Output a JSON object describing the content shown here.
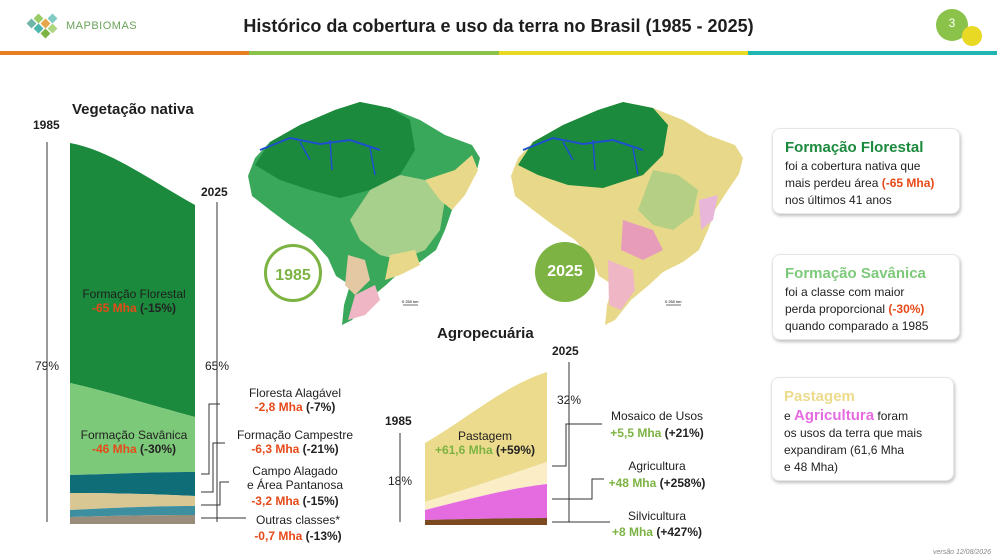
{
  "header": {
    "logo_text": "MAPBIOMAS",
    "title": "Histórico da cobertura e uso da terra no Brasil (1985 - 2025)",
    "page_number": "3",
    "bar_colors": [
      "#e67e22",
      "#8bc34a",
      "#e7d924",
      "#1fb5b0"
    ]
  },
  "native": {
    "title": "Vegetação nativa",
    "year_start": "1985",
    "year_end": "2025",
    "pct_start": "79%",
    "pct_end": "65%",
    "florestal_name": "Formação Florestal",
    "florestal_value": "-65 Mha",
    "florestal_pct": "(-15%)",
    "savanica_name": "Formação Savânica",
    "savanica_value": "-46 Mha",
    "savanica_pct": "(-30%)",
    "alagavel_name": "Floresta Alagável",
    "alagavel_value": "-2,8 Mha",
    "alagavel_pct": "(-7%)",
    "campestre_name": "Formação Campestre",
    "campestre_value": "-6,3 Mha",
    "campestre_pct": "(-21%)",
    "campo_name_1": "Campo Alagado",
    "campo_name_2": "e Área Pantanosa",
    "campo_value": "-3,2 Mha",
    "campo_pct": "(-15%)",
    "outras_name": "Outras classes*",
    "outras_value": "-0,7 Mha",
    "outras_pct": "(-13%)",
    "colors": {
      "florestal": "#1b8a3c",
      "savanica": "#7dc97a",
      "alagavel": "#0e6d76",
      "campestre": "#d8c793",
      "campo": "#3d8fa0",
      "outras": "#9a8c7a"
    }
  },
  "maps": {
    "year_1985": "1985",
    "year_2025": "2025",
    "scale_text": "0      250 km"
  },
  "agro": {
    "title": "Agropecuária",
    "year_start": "1985",
    "year_end": "2025",
    "pct_start": "18%",
    "pct_end": "32%",
    "pastagem_name": "Pastagem",
    "pastagem_value": "+61,6 Mha",
    "pastagem_pct": "(+59%)",
    "mosaico_name": "Mosaico de Usos",
    "mosaico_value": "+5,5 Mha",
    "mosaico_pct": "(+21%)",
    "agricultura_name": "Agricultura",
    "agricultura_value": "+48 Mha",
    "agricultura_pct": "(+258%)",
    "silvicultura_name": "Silvicultura",
    "silvicultura_value": "+8 Mha",
    "silvicultura_pct": "(+427%)",
    "colors": {
      "pastagem": "#ecdb8c",
      "mosaico": "#fbeec6",
      "agricultura": "#e56be1",
      "silvicultura": "#7b4a21"
    }
  },
  "cards": {
    "florestal": {
      "title": "Formação Florestal",
      "line1": "foi a cobertura nativa que",
      "line2_pre": "mais perdeu área",
      "line2_hl": "(-65 Mha)",
      "line3": "nos últimos 41 anos"
    },
    "savanica": {
      "title": "Formação Savânica",
      "line1": "foi a classe com maior",
      "line2_pre": "perda proporcional",
      "line2_hl": "(-30%)",
      "line3": "quando comparado a 1985"
    },
    "agro": {
      "title_pastagem": "Pastagem",
      "connector": "e",
      "title_agricultura": "Agricultura",
      "suffix": "foram",
      "line1": "os usos da terra que mais",
      "line2": "expandiram (61,6 Mha",
      "line3": "e 48 Mha)"
    }
  },
  "footer": {
    "version": "versão 12/08/2026"
  }
}
